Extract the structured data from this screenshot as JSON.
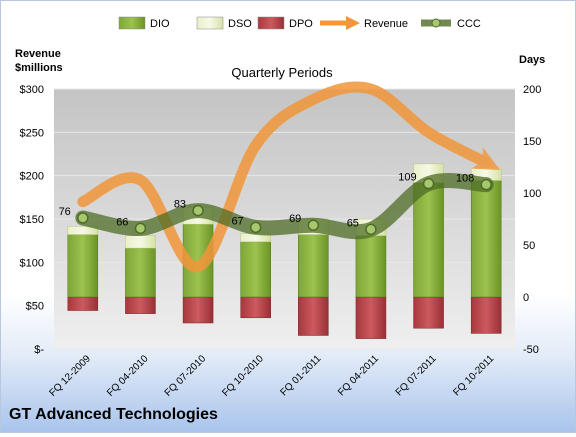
{
  "chart_data": {
    "type": "bar",
    "title": "Quarterly Periods",
    "company": "GT Advanced Technologies",
    "ylabel_left": "Revenue $millions",
    "ylabel_right": "Days",
    "left_axis": {
      "min": 0,
      "max": 300,
      "step": 50,
      "tick_labels": [
        "$-",
        "$50",
        "$100",
        "$150",
        "$200",
        "$250",
        "$300"
      ]
    },
    "right_axis": {
      "min": -50,
      "max": 200,
      "step": 50,
      "tick_labels": [
        "-50",
        "0",
        "50",
        "100",
        "150",
        "200"
      ]
    },
    "categories": [
      "FQ 12-2009",
      "FQ 04-2010",
      "FQ 07-2010",
      "FQ 10-2010",
      "FQ 01-2011",
      "FQ 04-2011",
      "FQ 07-2011",
      "FQ 10-2011"
    ],
    "legend": [
      "DIO",
      "DSO",
      "DPO",
      "Revenue",
      "CCC"
    ],
    "series": [
      {
        "name": "DIO",
        "axis": "right",
        "values": [
          60,
          47,
          70,
          53,
          60,
          59,
          110,
          112
        ]
      },
      {
        "name": "DSO",
        "axis": "right",
        "values": [
          8,
          12,
          16,
          8,
          15,
          16,
          18,
          12
        ]
      },
      {
        "name": "DPO",
        "axis": "right",
        "values": [
          -13,
          -16,
          -25,
          -20,
          -37,
          -40,
          -30,
          -35
        ]
      },
      {
        "name": "Revenue",
        "axis": "left",
        "values": [
          170,
          195,
          95,
          235,
          288,
          300,
          250,
          215
        ]
      },
      {
        "name": "CCC",
        "axis": "right",
        "values": [
          76,
          66,
          83,
          67,
          69,
          65,
          109,
          108
        ]
      }
    ],
    "colors": {
      "DIO": "#6e9a2a",
      "DSO": "#dce8b0",
      "DPO": "#b8444a",
      "Revenue": "#f2963a",
      "CCC": "#5a7a2c"
    }
  }
}
